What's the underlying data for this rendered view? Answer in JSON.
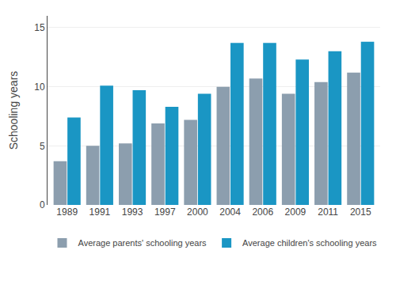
{
  "chart_data": {
    "type": "bar",
    "ylabel": "Schooling years",
    "categories": [
      "1989",
      "1991",
      "1993",
      "1997",
      "2000",
      "2004",
      "2006",
      "2009",
      "2011",
      "2015"
    ],
    "series": [
      {
        "name": "Average parents' schooling years",
        "color": "#8C9EAE",
        "values": [
          3.7,
          5.0,
          5.2,
          6.9,
          7.2,
          10.0,
          10.7,
          9.4,
          10.4,
          11.2
        ]
      },
      {
        "name": "Average children's schooling years",
        "color": "#1A96C4",
        "values": [
          7.4,
          10.1,
          9.7,
          8.3,
          9.4,
          13.7,
          13.7,
          12.3,
          13.0,
          13.8
        ]
      }
    ],
    "ylim": [
      0,
      16
    ],
    "yticks": [
      0,
      5,
      10,
      15
    ],
    "grid": true,
    "legend": "bottom"
  }
}
